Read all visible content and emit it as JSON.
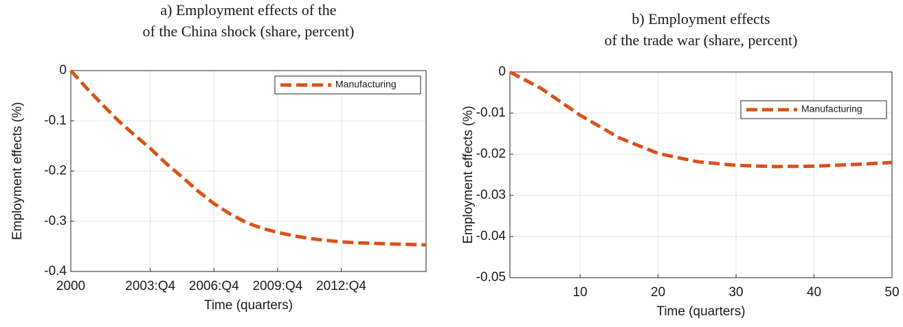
{
  "chart_data": [
    {
      "type": "line",
      "title": [
        "a) Employment effects of the",
        "of the China shock (share, percent)"
      ],
      "xlabel": "Time (quarters)",
      "ylabel": "Employment effects (%)",
      "x": [
        0,
        3,
        6,
        9,
        12,
        15,
        18,
        21,
        24,
        27,
        30,
        33,
        36,
        39,
        42,
        45,
        48,
        51,
        54,
        57,
        60,
        63,
        67
      ],
      "series": [
        {
          "name": "Manufacturing",
          "color": "#d95319",
          "dashed": true,
          "values": [
            0,
            -0.035,
            -0.068,
            -0.1,
            -0.128,
            -0.155,
            -0.185,
            -0.212,
            -0.24,
            -0.265,
            -0.285,
            -0.302,
            -0.314,
            -0.322,
            -0.329,
            -0.334,
            -0.338,
            -0.341,
            -0.343,
            -0.344,
            -0.345,
            -0.346,
            -0.347
          ]
        }
      ],
      "xlim": [
        0,
        67
      ],
      "ylim": [
        -0.4,
        0
      ],
      "xticks": [
        {
          "value": 0,
          "label": "2000"
        },
        {
          "value": 15,
          "label": "2003:Q4"
        },
        {
          "value": 27,
          "label": "2006:Q4"
        },
        {
          "value": 39,
          "label": "2009:Q4"
        },
        {
          "value": 51,
          "label": "2012:Q4"
        }
      ],
      "yticks": [
        -0.4,
        -0.3,
        -0.2,
        -0.1,
        0
      ],
      "grid": true,
      "legend": "northeast"
    },
    {
      "type": "line",
      "title": [
        "b) Employment effects",
        "of the trade war (share, percent)"
      ],
      "xlabel": "Time (quarters)",
      "ylabel": "Employment effects (%)",
      "x": [
        1,
        5,
        10,
        15,
        20,
        25,
        30,
        35,
        40,
        45,
        50
      ],
      "series": [
        {
          "name": "Manufacturing",
          "color": "#d95319",
          "dashed": true,
          "values": [
            0,
            -0.004,
            -0.0105,
            -0.016,
            -0.0198,
            -0.0218,
            -0.0227,
            -0.023,
            -0.0229,
            -0.0225,
            -0.022
          ]
        }
      ],
      "xlim": [
        1,
        50
      ],
      "ylim": [
        -0.05,
        0
      ],
      "xticks": [
        10,
        20,
        30,
        40,
        50
      ],
      "yticks": [
        -0.05,
        -0.04,
        -0.03,
        -0.02,
        -0.01,
        0
      ],
      "grid": true,
      "legend": "northeast"
    }
  ]
}
